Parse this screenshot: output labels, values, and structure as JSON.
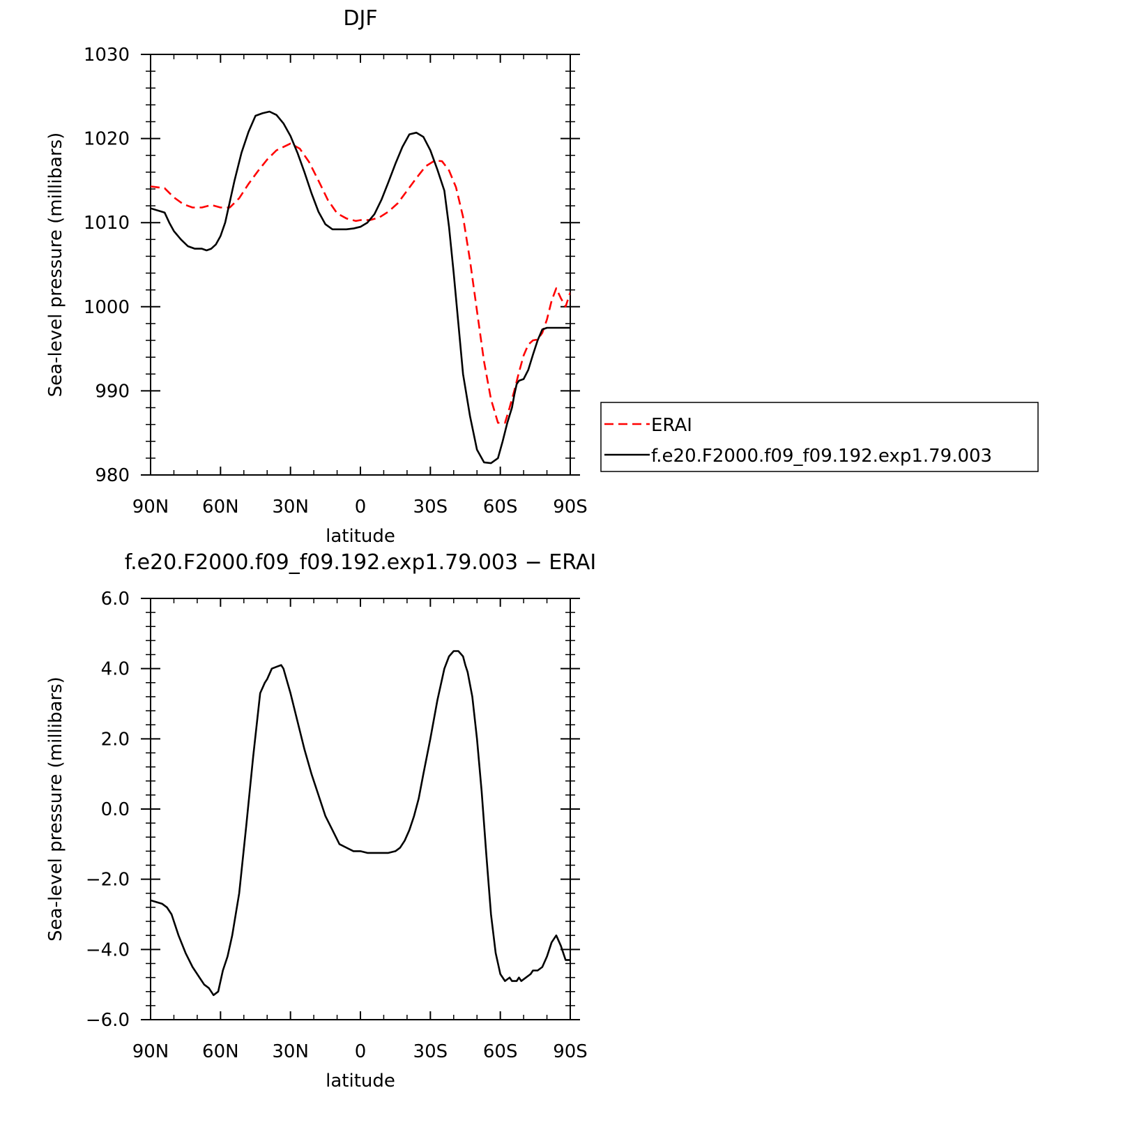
{
  "chart_data": [
    {
      "type": "line",
      "title": "DJF",
      "xlabel": "latitude",
      "ylabel": "Sea-level pressure (millibars)",
      "xlim": [
        90,
        -90
      ],
      "ylim": [
        980,
        1030
      ],
      "x_ticks": [
        {
          "value": 90,
          "label": "90N"
        },
        {
          "value": 60,
          "label": "60N"
        },
        {
          "value": 30,
          "label": "30N"
        },
        {
          "value": 0,
          "label": "0"
        },
        {
          "value": -30,
          "label": "30S"
        },
        {
          "value": -60,
          "label": "60S"
        },
        {
          "value": -90,
          "label": "90S"
        }
      ],
      "y_ticks": [
        {
          "value": 980,
          "label": "980"
        },
        {
          "value": 990,
          "label": "990"
        },
        {
          "value": 1000,
          "label": "1000"
        },
        {
          "value": 1010,
          "label": "1010"
        },
        {
          "value": 1020,
          "label": "1020"
        },
        {
          "value": 1030,
          "label": "1030"
        }
      ],
      "legend_position": "right",
      "grid": false,
      "series": [
        {
          "name": "ERAI",
          "color": "#ff0000",
          "dash": "dashed",
          "x": [
            90,
            84,
            80,
            76,
            72,
            68,
            64,
            60,
            56,
            52,
            48,
            44,
            40,
            36,
            33,
            30,
            26,
            22,
            18,
            14,
            10,
            6,
            2,
            0,
            -4,
            -8,
            -12,
            -16,
            -20,
            -24,
            -28,
            -32,
            -35,
            -38,
            -41,
            -44,
            -47,
            -50,
            -53,
            -56,
            -59,
            -62,
            -64,
            -66,
            -68,
            -70,
            -72,
            -74,
            -76,
            -78,
            -80,
            -82,
            -84,
            -86,
            -88,
            -90
          ],
          "values": [
            1014.3,
            1014.1,
            1013.0,
            1012.2,
            1011.8,
            1011.8,
            1012.1,
            1011.8,
            1011.8,
            1012.9,
            1014.6,
            1016.1,
            1017.5,
            1018.6,
            1019.0,
            1019.4,
            1018.8,
            1017.2,
            1015.0,
            1012.7,
            1011.1,
            1010.5,
            1010.2,
            1010.3,
            1010.3,
            1010.6,
            1011.3,
            1012.3,
            1013.8,
            1015.3,
            1016.7,
            1017.4,
            1017.3,
            1016.2,
            1014.2,
            1010.7,
            1005.5,
            999.5,
            993.5,
            989.0,
            986.2,
            986.2,
            988.0,
            990.0,
            992.2,
            994.2,
            995.5,
            996.0,
            996.1,
            996.9,
            998.5,
            1000.7,
            1002.2,
            1001.0,
            1000.0,
            1001.7
          ]
        },
        {
          "name": "f.e20.F2000.f09_f09.192.exp1.79.003",
          "color": "#000000",
          "dash": "solid",
          "x": [
            90,
            84,
            82,
            80,
            77,
            74,
            71,
            68,
            66,
            64,
            62,
            60,
            58,
            56,
            54,
            51,
            48,
            45,
            42,
            39,
            36,
            33,
            30,
            27,
            24,
            21,
            18,
            15,
            12,
            9,
            6,
            3,
            0,
            -3,
            -6,
            -9,
            -12,
            -15,
            -18,
            -21,
            -24,
            -27,
            -30,
            -33,
            -36,
            -38,
            -40,
            -42,
            -44,
            -47,
            -50,
            -53,
            -56,
            -59,
            -61,
            -63,
            -65,
            -66,
            -67,
            -68,
            -70,
            -72,
            -74,
            -76,
            -78,
            -80,
            -82,
            -84,
            -86,
            -88,
            -90
          ],
          "values": [
            1011.7,
            1011.2,
            1010.0,
            1009.0,
            1008.0,
            1007.2,
            1006.9,
            1006.9,
            1006.7,
            1006.9,
            1007.4,
            1008.4,
            1010.0,
            1012.5,
            1015.0,
            1018.3,
            1020.8,
            1022.7,
            1023.0,
            1023.2,
            1022.8,
            1021.8,
            1020.3,
            1018.3,
            1016.0,
            1013.5,
            1011.3,
            1009.8,
            1009.2,
            1009.2,
            1009.2,
            1009.3,
            1009.5,
            1010.0,
            1011.0,
            1012.7,
            1014.8,
            1017.0,
            1019.0,
            1020.5,
            1020.7,
            1020.2,
            1018.6,
            1016.3,
            1013.8,
            1009.5,
            1004.0,
            998.0,
            992.0,
            987.0,
            983.0,
            981.5,
            981.4,
            982.0,
            984.0,
            986.2,
            988.0,
            989.5,
            990.8,
            991.2,
            991.4,
            992.5,
            994.3,
            996.0,
            997.3,
            997.5,
            997.5,
            997.5,
            997.5,
            997.5,
            997.5
          ]
        }
      ]
    },
    {
      "type": "line",
      "title": "f.e20.F2000.f09_f09.192.exp1.79.003 − ERAI",
      "xlabel": "latitude",
      "ylabel": "Sea-level pressure (millibars)",
      "xlim": [
        90,
        -90
      ],
      "ylim": [
        -6,
        6
      ],
      "x_ticks": [
        {
          "value": 90,
          "label": "90N"
        },
        {
          "value": 60,
          "label": "60N"
        },
        {
          "value": 30,
          "label": "30N"
        },
        {
          "value": 0,
          "label": "0"
        },
        {
          "value": -30,
          "label": "30S"
        },
        {
          "value": -60,
          "label": "60S"
        },
        {
          "value": -90,
          "label": "90S"
        }
      ],
      "y_ticks": [
        {
          "value": -6,
          "label": "−6.0"
        },
        {
          "value": -4,
          "label": "−4.0"
        },
        {
          "value": -2,
          "label": "−2.0"
        },
        {
          "value": 0,
          "label": "0.0"
        },
        {
          "value": 2,
          "label": "2.0"
        },
        {
          "value": 4,
          "label": "4.0"
        },
        {
          "value": 6,
          "label": "6.0"
        }
      ],
      "grid": false,
      "series": [
        {
          "color": "#000000",
          "dash": "solid",
          "x": [
            90,
            85,
            83,
            81,
            78,
            75,
            72,
            69,
            67,
            65,
            63,
            61,
            59,
            57,
            55,
            52,
            49,
            46,
            43,
            41,
            40,
            38,
            36,
            34,
            33,
            30,
            27,
            24,
            21,
            18,
            15,
            12,
            9,
            6,
            3,
            0,
            -3,
            -6,
            -9,
            -12,
            -15,
            -17,
            -19,
            -21,
            -23,
            -25,
            -27,
            -30,
            -33,
            -36,
            -38,
            -40,
            -42,
            -44,
            -45,
            -46,
            -48,
            -50,
            -52,
            -54,
            -56,
            -58,
            -60,
            -62,
            -64,
            -65,
            -67,
            -68,
            -69,
            -71,
            -73,
            -74,
            -76,
            -78,
            -80,
            -82,
            -84,
            -86,
            -88,
            -90
          ],
          "values": [
            -2.6,
            -2.7,
            -2.8,
            -3.0,
            -3.6,
            -4.1,
            -4.5,
            -4.8,
            -5.0,
            -5.1,
            -5.3,
            -5.2,
            -4.6,
            -4.2,
            -3.6,
            -2.4,
            -0.5,
            1.5,
            3.3,
            3.6,
            3.7,
            4.0,
            4.05,
            4.1,
            4.0,
            3.3,
            2.5,
            1.7,
            1.0,
            0.4,
            -0.2,
            -0.6,
            -1.0,
            -1.1,
            -1.2,
            -1.2,
            -1.25,
            -1.25,
            -1.25,
            -1.25,
            -1.2,
            -1.1,
            -0.9,
            -0.6,
            -0.2,
            0.3,
            1.0,
            2.0,
            3.1,
            4.0,
            4.35,
            4.5,
            4.5,
            4.35,
            4.1,
            3.9,
            3.2,
            2.0,
            0.5,
            -1.3,
            -3.0,
            -4.1,
            -4.7,
            -4.9,
            -4.8,
            -4.9,
            -4.9,
            -4.8,
            -4.9,
            -4.8,
            -4.7,
            -4.6,
            -4.6,
            -4.5,
            -4.2,
            -3.8,
            -3.6,
            -3.9,
            -4.3,
            -4.3
          ]
        }
      ]
    }
  ]
}
